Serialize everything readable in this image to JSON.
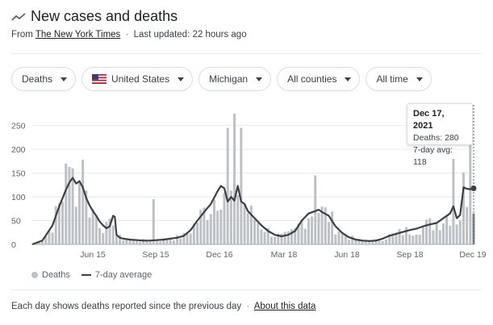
{
  "header": {
    "title": "New cases and deaths",
    "source_prefix": "From",
    "source_name": "The New York Times",
    "separator": "·",
    "last_updated": "Last updated: 22 hours ago"
  },
  "filters": [
    {
      "label": "Deaths"
    },
    {
      "label": "United States",
      "icon": "us-flag-icon"
    },
    {
      "label": "Michigan"
    },
    {
      "label": "All counties"
    },
    {
      "label": "All time"
    }
  ],
  "tooltip": {
    "date": "Dec 17, 2021",
    "deaths": "Deaths: 280",
    "avg": "7-day avg: 118"
  },
  "legend": {
    "bars": "Deaths",
    "line": "7-day average"
  },
  "footer": {
    "note": "Each day shows deaths reported since the previous day",
    "separator": "·",
    "link": "About this data"
  },
  "colors": {
    "bars": "#bdc1c6",
    "average_line": "#3c4043",
    "highlight_bar": "#80868b"
  },
  "chart_data": {
    "type": "bar",
    "series": [
      {
        "name": "Deaths",
        "type": "bar"
      },
      {
        "name": "7-day average",
        "type": "line"
      }
    ],
    "x_tick_labels": [
      "Jun 15",
      "Sep 15",
      "Dec 16",
      "Mar 18",
      "Jun 18",
      "Sep 18",
      "Dec 19"
    ],
    "y_ticks": [
      0,
      50,
      100,
      150,
      200,
      250
    ],
    "ylim": [
      0,
      280
    ],
    "grid": true,
    "highlight": {
      "date": "Dec 17, 2021",
      "deaths": 280,
      "avg": 118
    },
    "average_points": [
      [
        0,
        0
      ],
      [
        3,
        8
      ],
      [
        6,
        40
      ],
      [
        8,
        80
      ],
      [
        10,
        115
      ],
      [
        11,
        130
      ],
      [
        12,
        140
      ],
      [
        13,
        128
      ],
      [
        14,
        133
      ],
      [
        15,
        120
      ],
      [
        16,
        98
      ],
      [
        17,
        82
      ],
      [
        18,
        70
      ],
      [
        19,
        60
      ],
      [
        20,
        48
      ],
      [
        21,
        40
      ],
      [
        22,
        34
      ],
      [
        23,
        38
      ],
      [
        24,
        60
      ],
      [
        24.5,
        58
      ],
      [
        25,
        20
      ],
      [
        26,
        14
      ],
      [
        27,
        12
      ],
      [
        29,
        10
      ],
      [
        31,
        9
      ],
      [
        33,
        8
      ],
      [
        35,
        8
      ],
      [
        37,
        9
      ],
      [
        39,
        10
      ],
      [
        41,
        12
      ],
      [
        43,
        14
      ],
      [
        45,
        18
      ],
      [
        47,
        30
      ],
      [
        49,
        50
      ],
      [
        51,
        68
      ],
      [
        53,
        85
      ],
      [
        55,
        112
      ],
      [
        56,
        123
      ],
      [
        57,
        118
      ],
      [
        58,
        90
      ],
      [
        59,
        100
      ],
      [
        60,
        92
      ],
      [
        61,
        123
      ],
      [
        62,
        90
      ],
      [
        63,
        85
      ],
      [
        64,
        70
      ],
      [
        66,
        55
      ],
      [
        68,
        40
      ],
      [
        70,
        28
      ],
      [
        72,
        20
      ],
      [
        74,
        17
      ],
      [
        76,
        20
      ],
      [
        78,
        28
      ],
      [
        80,
        50
      ],
      [
        82,
        65
      ],
      [
        84,
        70
      ],
      [
        85,
        73
      ],
      [
        86,
        68
      ],
      [
        88,
        60
      ],
      [
        90,
        38
      ],
      [
        92,
        24
      ],
      [
        94,
        15
      ],
      [
        96,
        10
      ],
      [
        98,
        8
      ],
      [
        100,
        7
      ],
      [
        102,
        8
      ],
      [
        104,
        12
      ],
      [
        106,
        18
      ],
      [
        108,
        22
      ],
      [
        110,
        26
      ],
      [
        112,
        30
      ],
      [
        114,
        33
      ],
      [
        116,
        38
      ],
      [
        118,
        42
      ],
      [
        120,
        45
      ],
      [
        122,
        55
      ],
      [
        124,
        65
      ],
      [
        125,
        80
      ],
      [
        126,
        55
      ],
      [
        127,
        62
      ],
      [
        128,
        120
      ],
      [
        129,
        117
      ],
      [
        130,
        116
      ],
      [
        131,
        118
      ]
    ]
  }
}
